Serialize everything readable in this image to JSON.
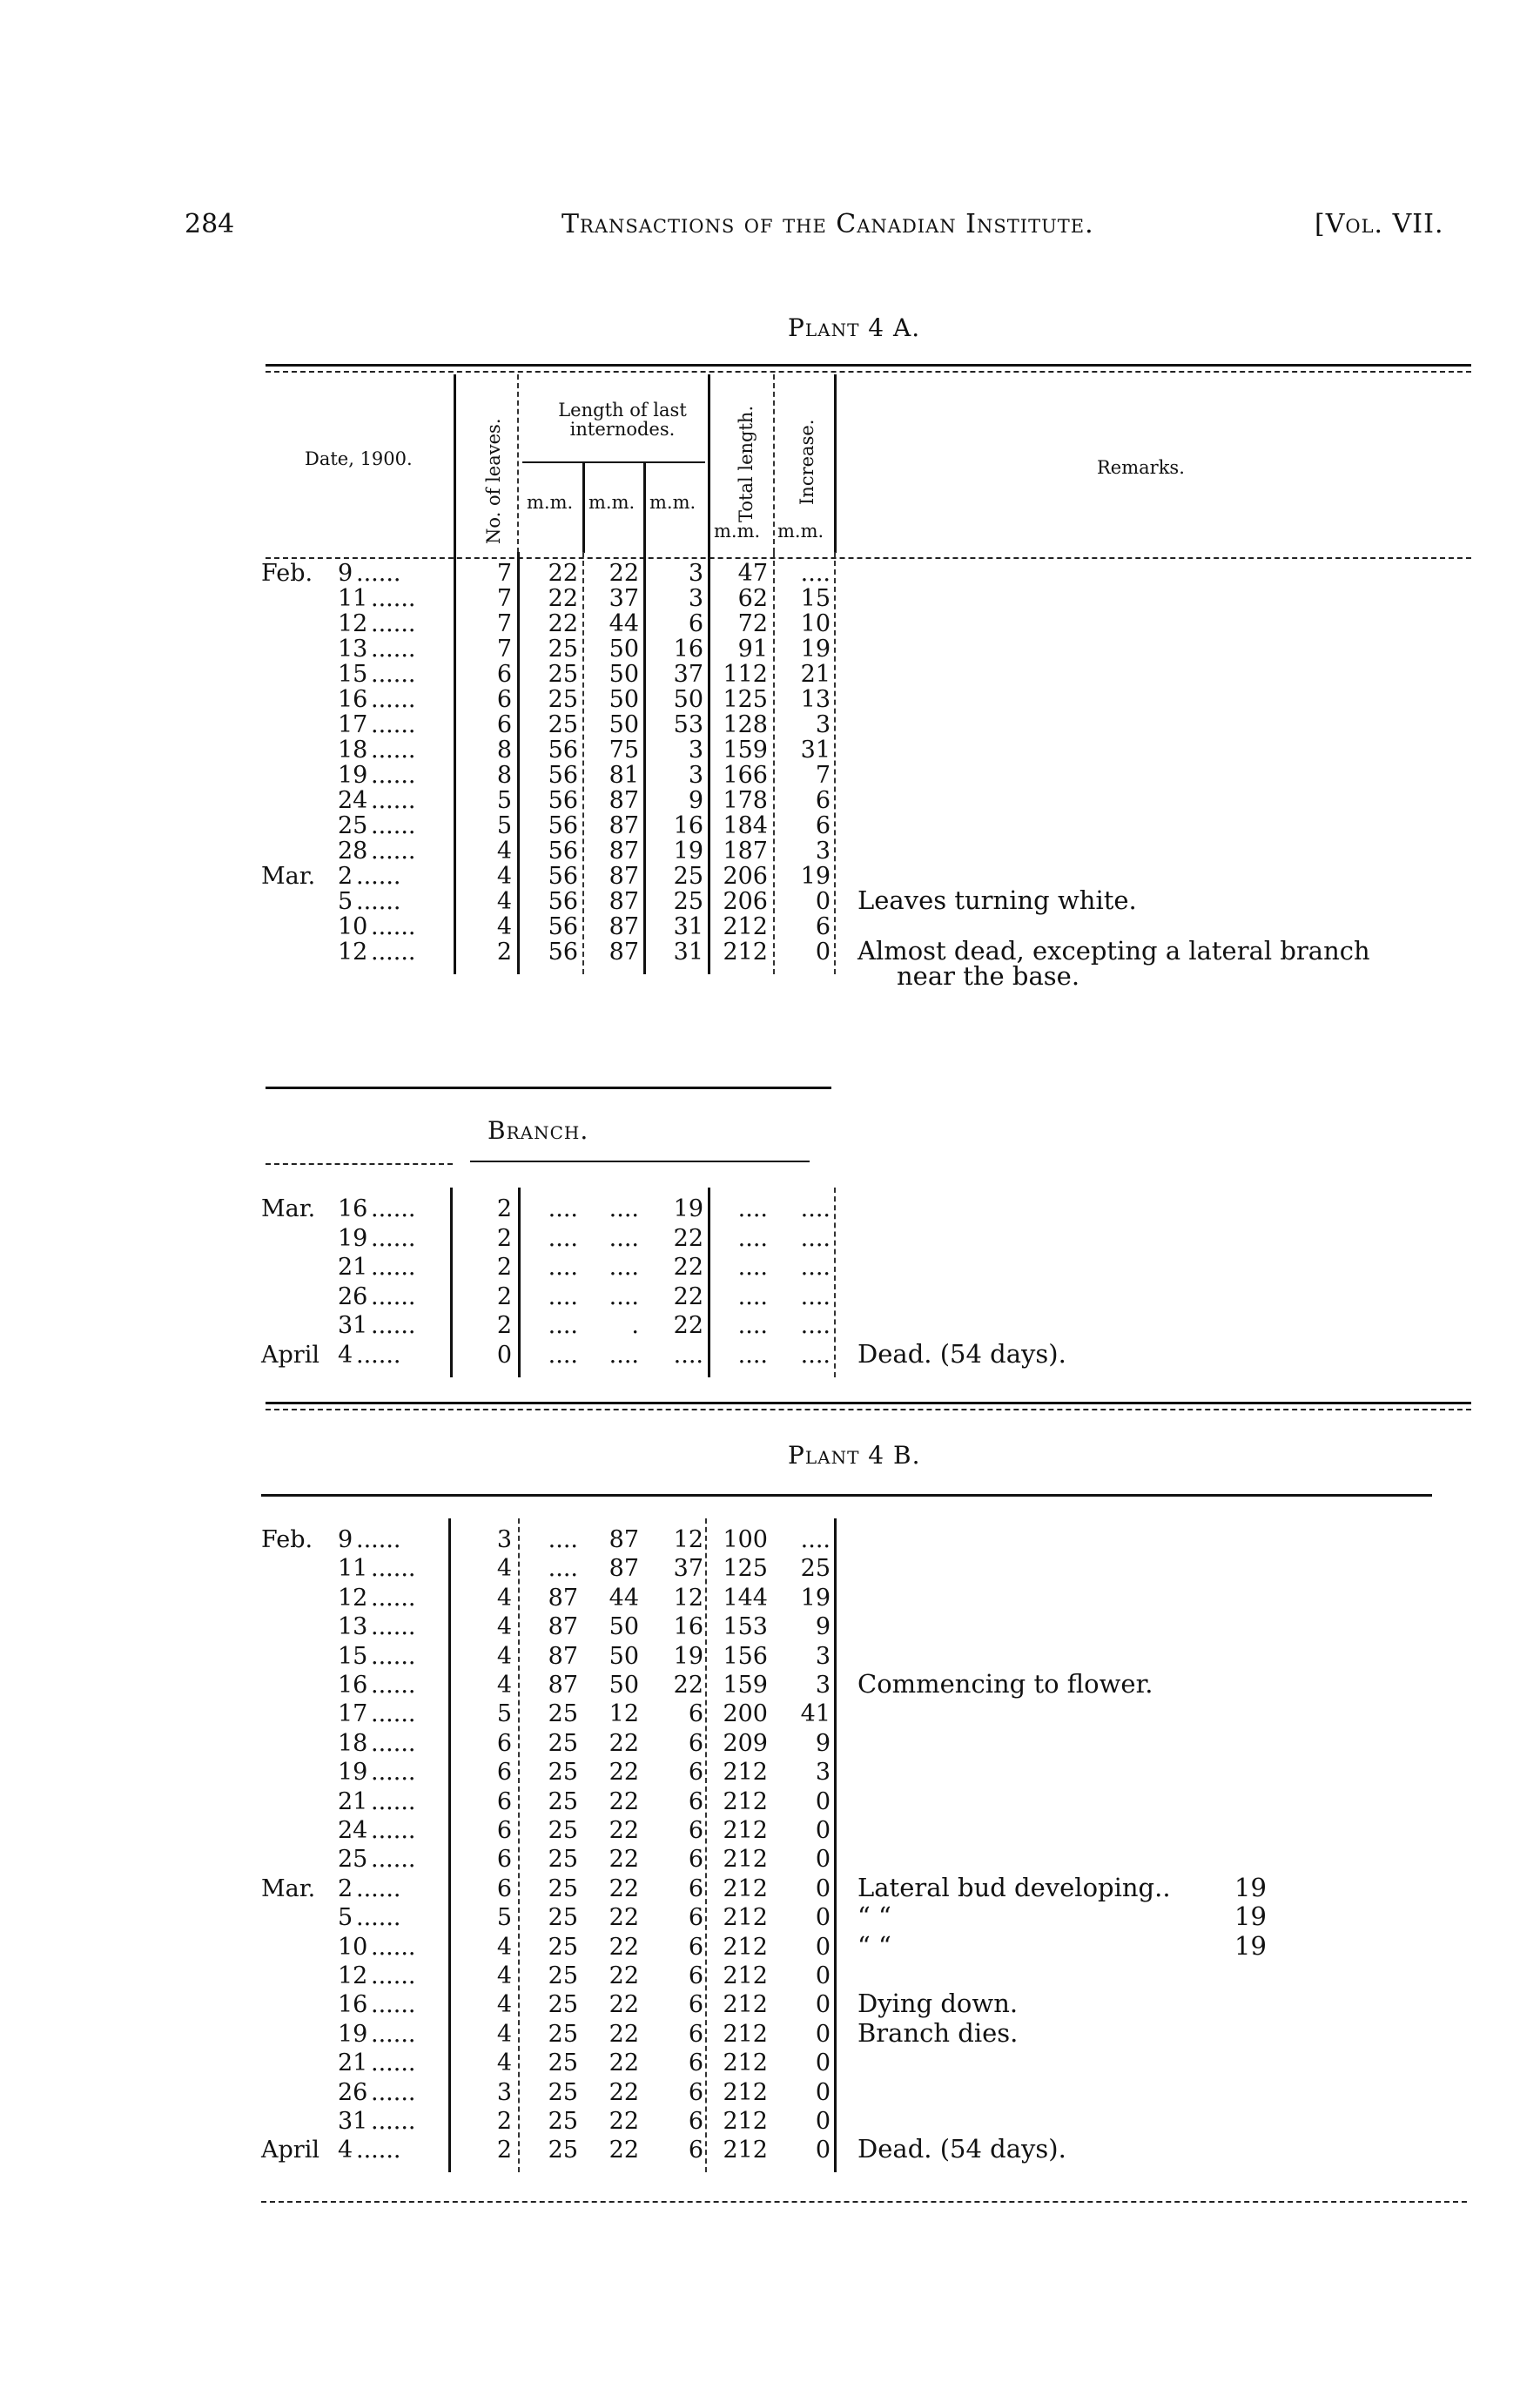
{
  "header": {
    "page_number": "284",
    "running_title": "Transactions of the Canadian Institute.",
    "volume": "[Vol. VII."
  },
  "plant_4a": {
    "title": "Plant 4 A.",
    "columns": {
      "date": "Date, 1900.",
      "leaves": "No. of leaves.",
      "internodes": "Length of last internodes.",
      "mm1": "m.m.",
      "mm2": "m.m.",
      "mm3": "m.m.",
      "total": "Total length.",
      "total_unit": "m.m.",
      "increase": "Increase.",
      "increase_unit": "m.m.",
      "remarks": "Remarks."
    },
    "rows": [
      {
        "month": "Feb.",
        "day": "9",
        "leaves": "7",
        "i1": "22",
        "i2": "22",
        "i3": "3",
        "total": "47",
        "increase": "....",
        "remark": ""
      },
      {
        "month": "",
        "day": "11",
        "leaves": "7",
        "i1": "22",
        "i2": "37",
        "i3": "3",
        "total": "62",
        "increase": "15",
        "remark": ""
      },
      {
        "month": "",
        "day": "12",
        "leaves": "7",
        "i1": "22",
        "i2": "44",
        "i3": "6",
        "total": "72",
        "increase": "10",
        "remark": ""
      },
      {
        "month": "",
        "day": "13",
        "leaves": "7",
        "i1": "25",
        "i2": "50",
        "i3": "16",
        "total": "91",
        "increase": "19",
        "remark": ""
      },
      {
        "month": "",
        "day": "15",
        "leaves": "6",
        "i1": "25",
        "i2": "50",
        "i3": "37",
        "total": "112",
        "increase": "21",
        "remark": ""
      },
      {
        "month": "",
        "day": "16",
        "leaves": "6",
        "i1": "25",
        "i2": "50",
        "i3": "50",
        "total": "125",
        "increase": "13",
        "remark": ""
      },
      {
        "month": "",
        "day": "17",
        "leaves": "6",
        "i1": "25",
        "i2": "50",
        "i3": "53",
        "total": "128",
        "increase": "3",
        "remark": ""
      },
      {
        "month": "",
        "day": "18",
        "leaves": "8",
        "i1": "56",
        "i2": "75",
        "i3": "3",
        "total": "159",
        "increase": "31",
        "remark": ""
      },
      {
        "month": "",
        "day": "19",
        "leaves": "8",
        "i1": "56",
        "i2": "81",
        "i3": "3",
        "total": "166",
        "increase": "7",
        "remark": ""
      },
      {
        "month": "",
        "day": "24",
        "leaves": "5",
        "i1": "56",
        "i2": "87",
        "i3": "9",
        "total": "178",
        "increase": "6",
        "remark": ""
      },
      {
        "month": "",
        "day": "25",
        "leaves": "5",
        "i1": "56",
        "i2": "87",
        "i3": "16",
        "total": "184",
        "increase": "6",
        "remark": ""
      },
      {
        "month": "",
        "day": "28",
        "leaves": "4",
        "i1": "56",
        "i2": "87",
        "i3": "19",
        "total": "187",
        "increase": "3",
        "remark": ""
      },
      {
        "month": "Mar.",
        "day": "2",
        "leaves": "4",
        "i1": "56",
        "i2": "87",
        "i3": "25",
        "total": "206",
        "increase": "19",
        "remark": ""
      },
      {
        "month": "",
        "day": "5",
        "leaves": "4",
        "i1": "56",
        "i2": "87",
        "i3": "25",
        "total": "206",
        "increase": "0",
        "remark": "Leaves turning white."
      },
      {
        "month": "",
        "day": "10",
        "leaves": "4",
        "i1": "56",
        "i2": "87",
        "i3": "31",
        "total": "212",
        "increase": "6",
        "remark": ""
      },
      {
        "month": "",
        "day": "12",
        "leaves": "2",
        "i1": "56",
        "i2": "87",
        "i3": "31",
        "total": "212",
        "increase": "0",
        "remark": "Almost dead, excepting a lateral branch",
        "remark2": "near the base."
      }
    ]
  },
  "branch": {
    "title": "Branch.",
    "rows": [
      {
        "month": "Mar.",
        "day": "16",
        "leaves": "2",
        "i1": "....",
        "i2": "....",
        "i3": "19",
        "total": "....",
        "increase": "....",
        "remark": ""
      },
      {
        "month": "",
        "day": "19",
        "leaves": "2",
        "i1": "....",
        "i2": "....",
        "i3": "22",
        "total": "....",
        "increase": "....",
        "remark": ""
      },
      {
        "month": "",
        "day": "21",
        "leaves": "2",
        "i1": "....",
        "i2": "....",
        "i3": "22",
        "total": "....",
        "increase": "....",
        "remark": ""
      },
      {
        "month": "",
        "day": "26",
        "leaves": "2",
        "i1": "....",
        "i2": "....",
        "i3": "22",
        "total": "....",
        "increase": "....",
        "remark": ""
      },
      {
        "month": "",
        "day": "31",
        "leaves": "2",
        "i1": "....",
        "i2": ".",
        "i3": "22",
        "total": "....",
        "increase": "....",
        "remark": ""
      },
      {
        "month": "April",
        "day": "4",
        "leaves": "0",
        "i1": "....",
        "i2": "....",
        "i3": "....",
        "total": "....",
        "increase": "....",
        "remark": "Dead.  (54 days)."
      }
    ]
  },
  "plant_4b": {
    "title": "Plant 4 B.",
    "rows": [
      {
        "month": "Feb.",
        "day": "9",
        "leaves": "3",
        "i1": "....",
        "i2": "87",
        "i3": "12",
        "total": "100",
        "increase": "....",
        "remark": ""
      },
      {
        "month": "",
        "day": "11",
        "leaves": "4",
        "i1": "....",
        "i2": "87",
        "i3": "37",
        "total": "125",
        "increase": "25",
        "remark": ""
      },
      {
        "month": "",
        "day": "12",
        "leaves": "4",
        "i1": "87",
        "i2": "44",
        "i3": "12",
        "total": "144",
        "increase": "19",
        "remark": ""
      },
      {
        "month": "",
        "day": "13",
        "leaves": "4",
        "i1": "87",
        "i2": "50",
        "i3": "16",
        "total": "153",
        "increase": "9",
        "remark": ""
      },
      {
        "month": "",
        "day": "15",
        "leaves": "4",
        "i1": "87",
        "i2": "50",
        "i3": "19",
        "total": "156",
        "increase": "3",
        "remark": ""
      },
      {
        "month": "",
        "day": "16",
        "leaves": "4",
        "i1": "87",
        "i2": "50",
        "i3": "22",
        "total": "159",
        "increase": "3",
        "remark": "Commencing to flower."
      },
      {
        "month": "",
        "day": "17",
        "leaves": "5",
        "i1": "25",
        "i2": "12",
        "i3": "6",
        "total": "200",
        "increase": "41",
        "remark": ""
      },
      {
        "month": "",
        "day": "18",
        "leaves": "6",
        "i1": "25",
        "i2": "22",
        "i3": "6",
        "total": "209",
        "increase": "9",
        "remark": ""
      },
      {
        "month": "",
        "day": "19",
        "leaves": "6",
        "i1": "25",
        "i2": "22",
        "i3": "6",
        "total": "212",
        "increase": "3",
        "remark": ""
      },
      {
        "month": "",
        "day": "21",
        "leaves": "6",
        "i1": "25",
        "i2": "22",
        "i3": "6",
        "total": "212",
        "increase": "0",
        "remark": ""
      },
      {
        "month": "",
        "day": "24",
        "leaves": "6",
        "i1": "25",
        "i2": "22",
        "i3": "6",
        "total": "212",
        "increase": "0",
        "remark": ""
      },
      {
        "month": "",
        "day": "25",
        "leaves": "6",
        "i1": "25",
        "i2": "22",
        "i3": "6",
        "total": "212",
        "increase": "0",
        "remark": ""
      },
      {
        "month": "Mar.",
        "day": "2",
        "leaves": "6",
        "i1": "25",
        "i2": "22",
        "i3": "6",
        "total": "212",
        "increase": "0",
        "remark": "Lateral bud developing..",
        "side": "19"
      },
      {
        "month": "",
        "day": "5",
        "leaves": "5",
        "i1": "25",
        "i2": "22",
        "i3": "6",
        "total": "212",
        "increase": "0",
        "remark": "“            “",
        "side": "19"
      },
      {
        "month": "",
        "day": "10",
        "leaves": "4",
        "i1": "25",
        "i2": "22",
        "i3": "6",
        "total": "212",
        "increase": "0",
        "remark": "“            “",
        "side": "19"
      },
      {
        "month": "",
        "day": "12",
        "leaves": "4",
        "i1": "25",
        "i2": "22",
        "i3": "6",
        "total": "212",
        "increase": "0",
        "remark": ""
      },
      {
        "month": "",
        "day": "16",
        "leaves": "4",
        "i1": "25",
        "i2": "22",
        "i3": "6",
        "total": "212",
        "increase": "0",
        "remark": "Dying down."
      },
      {
        "month": "",
        "day": "19",
        "leaves": "4",
        "i1": "25",
        "i2": "22",
        "i3": "6",
        "total": "212",
        "increase": "0",
        "remark": "Branch dies."
      },
      {
        "month": "",
        "day": "21",
        "leaves": "4",
        "i1": "25",
        "i2": "22",
        "i3": "6",
        "total": "212",
        "increase": "0",
        "remark": ""
      },
      {
        "month": "",
        "day": "26",
        "leaves": "3",
        "i1": "25",
        "i2": "22",
        "i3": "6",
        "total": "212",
        "increase": "0",
        "remark": ""
      },
      {
        "month": "",
        "day": "31",
        "leaves": "2",
        "i1": "25",
        "i2": "22",
        "i3": "6",
        "total": "212",
        "increase": "0",
        "remark": ""
      },
      {
        "month": "April",
        "day": "4",
        "leaves": "2",
        "i1": "25",
        "i2": "22",
        "i3": "6",
        "total": "212",
        "increase": "0",
        "remark": "Dead.  (54 days)."
      }
    ]
  }
}
